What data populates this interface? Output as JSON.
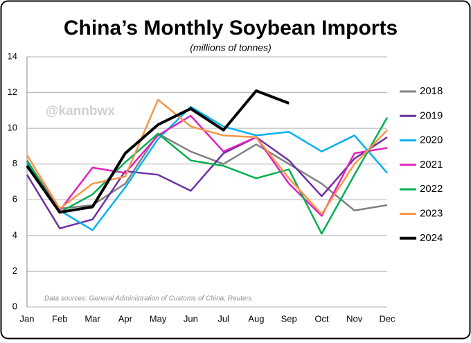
{
  "chart_data": {
    "type": "line",
    "title": "China’s Monthly Soybean Imports",
    "subtitle": "(millions of tonnes)",
    "watermark": "@kannbwx",
    "source": "Data sources: General Administration of Customs of China; Reuters",
    "categories": [
      "Jan",
      "Feb",
      "Mar",
      "Apr",
      "May",
      "Jun",
      "Jul",
      "Aug",
      "Sep",
      "Oct",
      "Nov",
      "Dec"
    ],
    "ylim": [
      0,
      14
    ],
    "yticks": [
      0,
      2,
      4,
      6,
      8,
      10,
      12,
      14
    ],
    "grid": true,
    "legend": "right",
    "series": [
      {
        "name": "2018",
        "color": "#808080",
        "values": [
          8.1,
          5.5,
          5.7,
          6.9,
          9.7,
          8.7,
          8.0,
          9.1,
          8.0,
          6.9,
          5.4,
          5.7
        ]
      },
      {
        "name": "2019",
        "color": "#7030a0",
        "values": [
          7.4,
          4.4,
          4.9,
          7.6,
          7.4,
          6.5,
          8.6,
          9.5,
          8.2,
          6.2,
          8.3,
          9.5
        ]
      },
      {
        "name": "2020",
        "color": "#00b0f0",
        "values": [
          8.0,
          5.4,
          4.3,
          6.7,
          9.4,
          11.2,
          10.1,
          9.6,
          9.8,
          8.7,
          9.6,
          7.5
        ]
      },
      {
        "name": "2021",
        "color": "#e020c0",
        "values": [
          8.2,
          5.4,
          7.8,
          7.5,
          9.6,
          10.7,
          8.7,
          9.5,
          6.9,
          5.1,
          8.6,
          8.9
        ]
      },
      {
        "name": "2022",
        "color": "#00b050",
        "values": [
          8.2,
          5.3,
          6.3,
          8.1,
          9.7,
          8.2,
          7.9,
          7.2,
          7.7,
          4.1,
          7.4,
          10.6
        ]
      },
      {
        "name": "2023",
        "color": "#f79646",
        "values": [
          8.5,
          5.5,
          6.9,
          7.3,
          11.6,
          10.1,
          9.6,
          9.5,
          7.2,
          5.2,
          8.0,
          9.9
        ]
      },
      {
        "name": "2024",
        "color": "#000000",
        "width": 4,
        "values": [
          7.9,
          5.3,
          5.6,
          8.6,
          10.2,
          11.1,
          9.9,
          12.1,
          11.4,
          null,
          null,
          null
        ]
      }
    ]
  }
}
